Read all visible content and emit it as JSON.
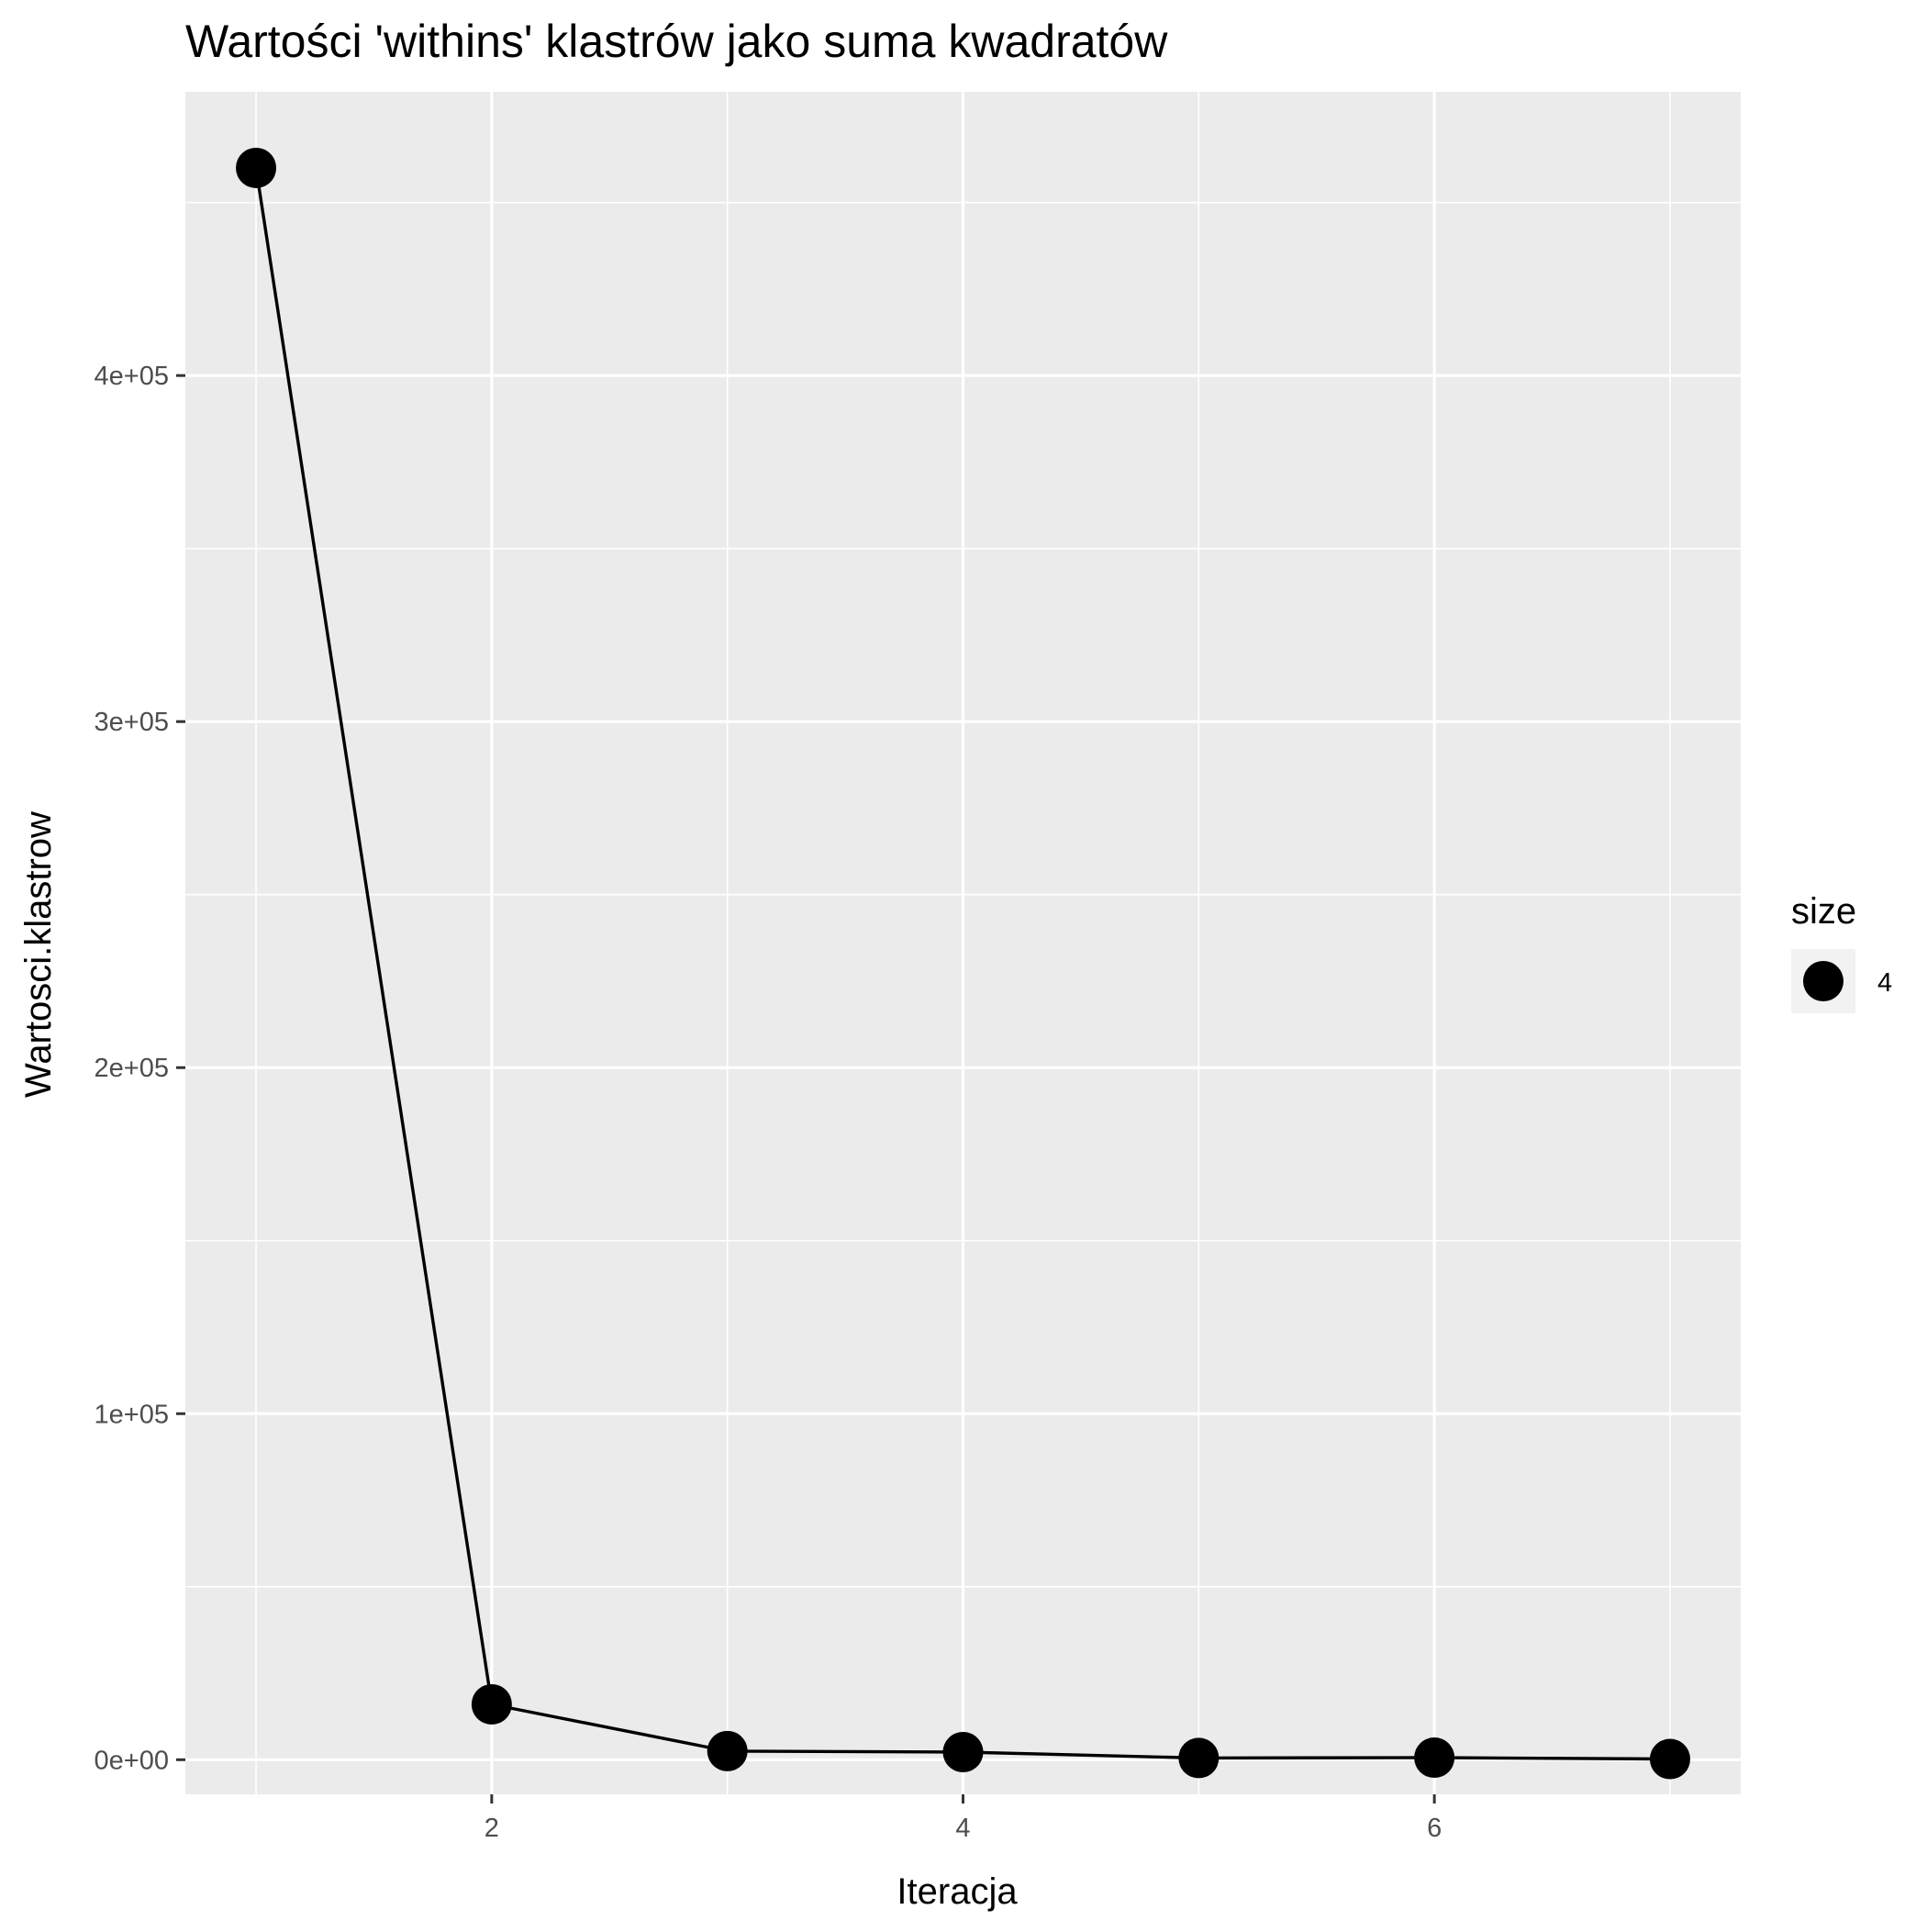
{
  "chart_data": {
    "type": "line",
    "title": "Wartości 'withins' klastrów jako suma kwadratów",
    "xlabel": "Iteracja",
    "ylabel": "Wartosci.klastrow",
    "x": [
      1,
      2,
      3,
      4,
      5,
      6,
      7
    ],
    "y": [
      460000,
      16000,
      2500,
      2200,
      500,
      600,
      200
    ],
    "xlim": [
      0.7,
      7.3
    ],
    "ylim": [
      -10000,
      482000
    ],
    "xticks": [
      2,
      4,
      6
    ],
    "xtick_labels": [
      "2",
      "4",
      "6"
    ],
    "yticks": [
      0,
      100000,
      200000,
      300000,
      400000
    ],
    "ytick_labels": [
      "0e+00",
      "1e+05",
      "2e+05",
      "3e+05",
      "4e+05"
    ],
    "grid": true,
    "legend": {
      "title": "size",
      "entries": [
        {
          "label": "4"
        }
      ],
      "placement": "right"
    },
    "colors": {
      "panel_background": "#ebebeb",
      "grid": "#ffffff",
      "series": "#000000",
      "legend_key_background": "#f2f2f2"
    }
  }
}
